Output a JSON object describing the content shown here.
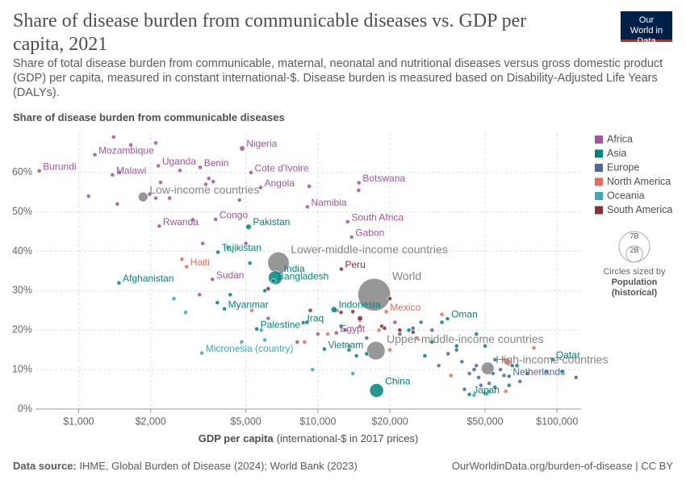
{
  "header": {
    "title": "Share of disease burden from communicable diseases vs. GDP per capita, 2021",
    "subtitle": "Share of total disease burden from communicable, maternal, neonatal and nutritional diseases versus gross domestic product (GDP) per capita, measured in constant international-$. Disease burden is measured based on Disability-Adjusted Life Years (DALYs).",
    "logo": "Our World in Data"
  },
  "footer": {
    "source_label": "Data source:",
    "source": "IHME, Global Burden of Disease (2024); World Bank (2023)",
    "url": "OurWorldinData.org/burden-of-disease | CC BY"
  },
  "chart_data": {
    "type": "scatter",
    "y_label": "Share of disease burden from communicable diseases",
    "x_label": "GDP per capita",
    "x_label_note": "(international-$ in 2017 prices)",
    "log_x": true,
    "grid": true,
    "legend": "right",
    "xlim": [
      660,
      126000
    ],
    "ylim": [
      0,
      70
    ],
    "xticks": [
      {
        "value": 1000,
        "label": "$1,000"
      },
      {
        "value": 2000,
        "label": "$2,000"
      },
      {
        "value": 5000,
        "label": "$5,000"
      },
      {
        "value": 10000,
        "label": "$10,000"
      },
      {
        "value": 20000,
        "label": "$20,000"
      },
      {
        "value": 50000,
        "label": "$50,000"
      },
      {
        "value": 100000,
        "label": "$100,000"
      }
    ],
    "yticks": [
      {
        "value": 0,
        "label": "0%"
      },
      {
        "value": 10,
        "label": "10%"
      },
      {
        "value": 20,
        "label": "20%"
      },
      {
        "value": 30,
        "label": "30%"
      },
      {
        "value": 40,
        "label": "40%"
      },
      {
        "value": 50,
        "label": "50%"
      },
      {
        "value": 60,
        "label": "60%"
      }
    ],
    "size_legend": {
      "ticks": [
        {
          "value": 7000,
          "label": "7B"
        },
        {
          "value": 2000,
          "label": "2B"
        }
      ],
      "title": "Circles sized by",
      "measure": "Population",
      "note": "(historical)"
    },
    "aggregates": {
      "color": "#858585",
      "x": [
        17200,
        1859,
        6840,
        17480,
        51300
      ],
      "values": [
        29.0,
        53.8,
        37.1,
        14.8,
        10.3
      ],
      "sizes": [
        7900,
        700,
        3400,
        2500,
        1200
      ],
      "labels": [
        "World",
        "Low-income countries",
        "Lower-middle-income countries",
        "Upper-middle-income countries",
        "High-income countries"
      ]
    },
    "series": [
      {
        "name": "Africa",
        "color": "#a2559c",
        "x": [
          684,
          1168,
          1384,
          2154,
          3223,
          4823,
          5251,
          5765,
          14850,
          9040,
          13320,
          13840,
          2172,
          3735,
          3622,
          11950,
          1100,
          1450,
          1480,
          1980,
          2100,
          2400,
          2200,
          2100,
          1400,
          1650,
          2650,
          3500,
          3400,
          3650,
          4700,
          5000,
          3300,
          3200,
          3000,
          6200,
          8200,
          9200,
          14800,
          12000,
          15000,
          10000,
          21000
        ],
        "values": [
          60.4,
          64.5,
          59.4,
          61.7,
          61.3,
          66.1,
          60.0,
          56.2,
          57.4,
          51.3,
          47.5,
          43.6,
          46.4,
          48.1,
          32.9,
          19.3,
          54,
          52,
          60,
          54.5,
          53.5,
          53.5,
          57.5,
          67.5,
          69,
          67,
          60.5,
          58.5,
          57,
          57.7,
          53,
          42,
          42,
          29,
          48,
          23,
          17,
          56.5,
          55.5,
          25,
          22.5,
          19,
          22
        ],
        "sizes": [
          13,
          32,
          20,
          47,
          13,
          213,
          28,
          34,
          2.6,
          2.5,
          60,
          2.3,
          13.5,
          5.8,
          46,
          109,
          12,
          20,
          18,
          25,
          15,
          10,
          30,
          22,
          17,
          26,
          6,
          9,
          14,
          8,
          3,
          2,
          5,
          28,
          4,
          1,
          2,
          3,
          2,
          1.5,
          1,
          12,
          2
        ],
        "labels": [
          "Burundi",
          "Mozambique",
          "Malawi",
          "Uganda",
          "Benin",
          "Nigeria",
          "Cote d'Ivoire",
          "Angola",
          "Botswana",
          "Namibia",
          "South Africa",
          "Gabon",
          "Rwanda",
          "Congo",
          "Sudan",
          "Egypt",
          null,
          null,
          null,
          null,
          null,
          null,
          null,
          null,
          null,
          null,
          null,
          null,
          null,
          null,
          null,
          null,
          null,
          null,
          null,
          null,
          null,
          null,
          null,
          null,
          null,
          null,
          null
        ]
      },
      {
        "name": "Asia",
        "color": "#00847e",
        "x": [
          1474,
          5130,
          3822,
          6635,
          6530,
          4067,
          11680,
          8700,
          10640,
          17600,
          34830,
          95500,
          43000,
          5550,
          3800,
          5200,
          4300,
          6000,
          9000,
          12500,
          13500,
          14500,
          16000,
          30000,
          38000,
          46000,
          50000,
          68000,
          33000,
          24000,
          105000,
          63000,
          55000,
          28000
        ],
        "values": [
          32.0,
          46.2,
          39.8,
          33.3,
          32.5,
          25.4,
          25.2,
          21.9,
          15.2,
          4.7,
          22.9,
          12.6,
          3.7,
          20.3,
          27,
          37,
          29,
          30,
          22,
          21,
          15,
          13.5,
          14,
          17,
          16,
          19,
          16,
          11,
          22,
          20,
          9.5,
          6,
          5.5,
          13.5
        ],
        "sizes": [
          40,
          231,
          9.8,
          1407,
          169,
          54,
          273,
          43,
          97,
          1425,
          4.5,
          2.7,
          125,
          5,
          7,
          36,
          30,
          20,
          10,
          35,
          20,
          20,
          19,
          50,
          5,
          4,
          10,
          5,
          3,
          30,
          4,
          9,
          5,
          52
        ],
        "labels": [
          "Afghanistan",
          "Pakistan",
          "Tajikistan",
          "India",
          "Bangladesh",
          "Myanmar",
          "Indonesia",
          "Iraq",
          "Vietnam",
          "China",
          "Oman",
          "Qatar",
          "Japan",
          "Palestine",
          null,
          null,
          null,
          null,
          null,
          null,
          null,
          null,
          null,
          null,
          null,
          null,
          null,
          null,
          null,
          null,
          null,
          null,
          null,
          null
        ]
      },
      {
        "name": "Europe",
        "color": "#4c6a9c",
        "x": [
          63000,
          13000,
          16000,
          22000,
          25000,
          27000,
          30000,
          32000,
          35000,
          38000,
          40000,
          43000,
          45000,
          47000,
          50000,
          52000,
          54000,
          58000,
          60000,
          65000,
          70000,
          75000,
          90000,
          120000,
          41000,
          48000,
          55000,
          46000
        ],
        "values": [
          8.3,
          20,
          18,
          19,
          20.5,
          22,
          20,
          11,
          14,
          15,
          12,
          9,
          10,
          8,
          4,
          6.5,
          9,
          10,
          8.5,
          11,
          7,
          9,
          9.5,
          8,
          5,
          6,
          12.5,
          11
        ],
        "sizes": [
          17.5,
          3,
          7,
          10,
          4,
          6,
          38,
          10,
          2,
          5,
          10,
          47,
          60,
          67,
          83,
          9,
          5,
          6,
          10,
          9,
          5,
          5,
          0.6,
          0.6,
          10,
          6,
          11,
          2
        ],
        "labels": [
          "Netherlands",
          null,
          null,
          null,
          null,
          null,
          null,
          null,
          null,
          null,
          null,
          null,
          null,
          null,
          null,
          null,
          null,
          null,
          null,
          null,
          null,
          null,
          null,
          null,
          null,
          null,
          null,
          null
        ]
      },
      {
        "name": "North America",
        "color": "#e56e5a",
        "x": [
          2826,
          19320,
          2700,
          5300,
          8800,
          11000,
          13500,
          15000,
          18000,
          20000,
          22000,
          26000,
          33000,
          36000,
          60000,
          62000,
          80000,
          61000
        ],
        "values": [
          36.1,
          24.7,
          38,
          25,
          17,
          19,
          16,
          21,
          20,
          15,
          20,
          18,
          24,
          8.5,
          12.5,
          12,
          15.5,
          4.5
        ],
        "sizes": [
          11.4,
          126,
          2,
          10,
          2,
          11,
          5,
          1,
          4,
          3,
          1,
          0.4,
          0.1,
          0.4,
          38,
          332,
          0.1,
          0.06
        ],
        "labels": [
          "Haiti",
          "Mexico",
          null,
          null,
          null,
          null,
          null,
          null,
          null,
          null,
          null,
          null,
          null,
          null,
          null,
          null,
          null,
          null
        ]
      },
      {
        "name": "Oceania",
        "color": "#38aaba",
        "x": [
          3273,
          2500,
          2800,
          4800,
          6000,
          5800,
          4200,
          14000,
          45000,
          51000,
          52000,
          9500
        ],
        "values": [
          14.2,
          28,
          24.5,
          17,
          17.5,
          20,
          41,
          9,
          3.5,
          3.8,
          4.5,
          10
        ],
        "sizes": [
          0.11,
          10,
          0.7,
          0.3,
          0.1,
          0.2,
          0.1,
          0.1,
          5,
          26,
          0.05,
          0.9
        ],
        "labels": [
          "Micronesia (country)",
          null,
          null,
          null,
          null,
          null,
          null,
          null,
          null,
          null,
          null,
          null
        ]
      },
      {
        "name": "South America",
        "color": "#883039",
        "x": [
          12530,
          6200,
          9300,
          12500,
          14000,
          15000,
          20000,
          18500,
          19000,
          22000,
          25000
        ],
        "values": [
          35.5,
          30.5,
          25,
          24.5,
          24.7,
          23,
          28,
          21,
          20.5,
          20,
          19.5
        ],
        "sizes": [
          33.7,
          12,
          0.8,
          50,
          18,
          214,
          0.6,
          45,
          3.4,
          19,
          28
        ],
        "labels": [
          "Peru",
          null,
          null,
          null,
          null,
          null,
          null,
          null,
          null,
          null,
          null
        ]
      }
    ]
  }
}
